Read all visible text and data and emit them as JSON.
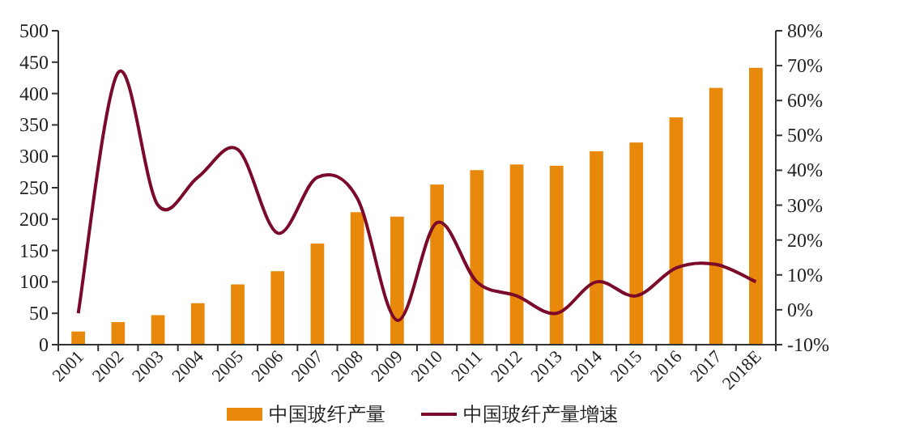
{
  "chart_data": {
    "type": "bar",
    "categories": [
      "2001",
      "2002",
      "2003",
      "2004",
      "2005",
      "2006",
      "2007",
      "2008",
      "2009",
      "2010",
      "2011",
      "2012",
      "2013",
      "2014",
      "2015",
      "2016",
      "2017",
      "2018E"
    ],
    "series": [
      {
        "name": "中国玻纤产量",
        "color": "#e8890c",
        "values": [
          21,
          36,
          47,
          66,
          96,
          117,
          161,
          211,
          204,
          255,
          278,
          287,
          285,
          308,
          322,
          362,
          409,
          441
        ]
      },
      {
        "name": "中国玻纤产量增速",
        "type": "line",
        "axis": "y2",
        "color": "#7b0a2a",
        "values": [
          -1,
          68,
          30,
          38,
          46,
          22,
          38,
          32,
          -3,
          25,
          8,
          4,
          -1,
          8,
          4,
          12,
          13,
          8
        ]
      }
    ],
    "ylim": [
      0,
      500
    ],
    "yticks": [
      0,
      50,
      100,
      150,
      200,
      250,
      300,
      350,
      400,
      450,
      500
    ],
    "y2lim": [
      -10,
      80
    ],
    "y2ticks": [
      {
        "value": -10,
        "label": "-10%"
      },
      {
        "value": 0,
        "label": "0%"
      },
      {
        "value": 10,
        "label": "10%"
      },
      {
        "value": 20,
        "label": "20%"
      },
      {
        "value": 30,
        "label": "30%"
      },
      {
        "value": 40,
        "label": "40%"
      },
      {
        "value": 50,
        "label": "50%"
      },
      {
        "value": 60,
        "label": "60%"
      },
      {
        "value": 70,
        "label": "70%"
      },
      {
        "value": 80,
        "label": "80%"
      }
    ],
    "legend": "bottom",
    "grid": false
  }
}
